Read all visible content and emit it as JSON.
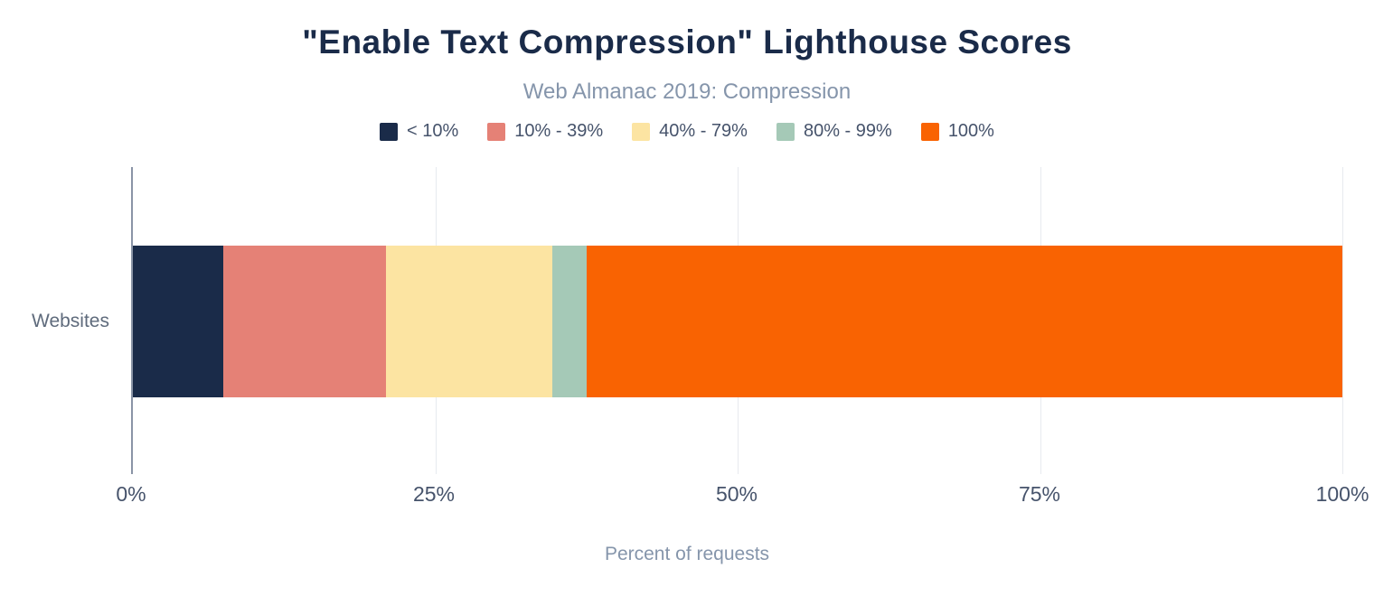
{
  "chart_data": {
    "type": "bar",
    "orientation": "horizontal",
    "stacked": true,
    "title": "\"Enable Text Compression\" Lighthouse Scores",
    "subtitle": "Web Almanac 2019: Compression",
    "categories": [
      "Websites"
    ],
    "series": [
      {
        "name": "< 10%",
        "value": 7.5,
        "color": "#1a2b49"
      },
      {
        "name": "10% - 39%",
        "value": 13.4,
        "color": "#e58176"
      },
      {
        "name": "40% - 79%",
        "value": 13.8,
        "color": "#fce4a2"
      },
      {
        "name": "80% - 99%",
        "value": 2.8,
        "color": "#a5c9b7"
      },
      {
        "name": "100%",
        "value": 62.5,
        "color": "#f96302"
      }
    ],
    "xlabel": "Percent of requests",
    "ylabel": "",
    "x_ticks": [
      "0%",
      "25%",
      "50%",
      "75%",
      "100%"
    ],
    "x_tick_positions": [
      0,
      25,
      50,
      75,
      100
    ],
    "xlim": [
      0,
      100
    ],
    "grid": true,
    "gridline_positions": [
      25,
      50,
      75,
      100
    ],
    "legend_position": "top"
  },
  "colors": {
    "title": "#1a2b49",
    "subtitle": "#8595ab",
    "axis_line": "#8a94a6",
    "gridline": "#e7eaef",
    "tick_label": "#46536b",
    "background": "#ffffff"
  }
}
